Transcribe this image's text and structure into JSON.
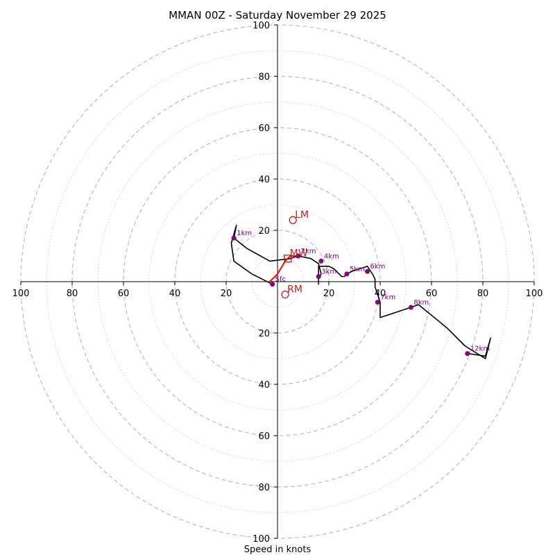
{
  "chart_data": {
    "type": "hodograph",
    "title": "MMAN 00Z - Saturday November 29 2025",
    "xlabel": "Speed in knots",
    "range": [
      -100,
      100
    ],
    "ring_major": [
      20,
      40,
      60,
      80,
      100
    ],
    "ring_minor": [
      10,
      30,
      50,
      70,
      90
    ],
    "x_ticks": [
      {
        "v": -100,
        "label": "100"
      },
      {
        "v": -80,
        "label": "80"
      },
      {
        "v": -60,
        "label": "60"
      },
      {
        "v": -40,
        "label": "40"
      },
      {
        "v": -20,
        "label": "20"
      },
      {
        "v": 20,
        "label": "20"
      },
      {
        "v": 40,
        "label": "40"
      },
      {
        "v": 60,
        "label": "60"
      },
      {
        "v": 80,
        "label": "80"
      },
      {
        "v": 100,
        "label": "100"
      }
    ],
    "y_ticks": [
      {
        "v": 100,
        "label": "100"
      },
      {
        "v": 80,
        "label": "80"
      },
      {
        "v": 60,
        "label": "60"
      },
      {
        "v": 40,
        "label": "40"
      },
      {
        "v": 20,
        "label": "20"
      },
      {
        "v": -20,
        "label": "20"
      },
      {
        "v": -40,
        "label": "40"
      },
      {
        "v": -60,
        "label": "60"
      },
      {
        "v": -80,
        "label": "80"
      },
      {
        "v": -100,
        "label": "100"
      }
    ],
    "trace": [
      [
        -2,
        -1
      ],
      [
        -10,
        3
      ],
      [
        -17,
        8
      ],
      [
        -18,
        15
      ],
      [
        -16,
        22
      ],
      [
        -17,
        17
      ],
      [
        -12,
        13
      ],
      [
        -3,
        8
      ],
      [
        5,
        9
      ],
      [
        8,
        10
      ],
      [
        13,
        9
      ],
      [
        16,
        7
      ],
      [
        17,
        3
      ],
      [
        16,
        1
      ],
      [
        16,
        -1
      ],
      [
        16,
        6
      ],
      [
        20,
        6
      ],
      [
        22,
        5
      ],
      [
        24,
        3
      ],
      [
        25,
        2
      ],
      [
        26,
        2
      ],
      [
        27,
        3
      ],
      [
        29,
        4
      ],
      [
        35,
        6
      ],
      [
        37,
        3
      ],
      [
        38,
        1
      ],
      [
        38,
        -2
      ],
      [
        39,
        -5
      ],
      [
        40,
        -8
      ],
      [
        40,
        -14
      ],
      [
        52,
        -10
      ],
      [
        55,
        -9
      ],
      [
        66,
        -18
      ],
      [
        73,
        -25
      ],
      [
        81,
        -30
      ],
      [
        83,
        -22
      ],
      [
        81,
        -29
      ],
      [
        74,
        -28
      ]
    ],
    "height_points": [
      {
        "x": -2,
        "y": -1,
        "label": "Sfc"
      },
      {
        "x": -17,
        "y": 17,
        "label": "1km"
      },
      {
        "x": 8,
        "y": 10,
        "label": "2km"
      },
      {
        "x": 16,
        "y": 2,
        "label": "3km"
      },
      {
        "x": 17,
        "y": 8,
        "label": "4km"
      },
      {
        "x": 27,
        "y": 3,
        "label": "5km"
      },
      {
        "x": 35,
        "y": 4,
        "label": "6km"
      },
      {
        "x": 39,
        "y": -8,
        "label": "7km"
      },
      {
        "x": 52,
        "y": -10,
        "label": "8km"
      },
      {
        "x": 74,
        "y": -28,
        "label": "12km"
      }
    ],
    "mean_wind_line": [
      [
        -3,
        0
      ],
      [
        0,
        3
      ],
      [
        3,
        8
      ],
      [
        5,
        10
      ],
      [
        8,
        10
      ]
    ],
    "markers": [
      {
        "x": 6,
        "y": 24,
        "label": "LM",
        "shape": "circle"
      },
      {
        "x": 4,
        "y": 9,
        "label": "MW",
        "shape": "square"
      },
      {
        "x": 3,
        "y": -5,
        "label": "RM",
        "shape": "circle"
      }
    ],
    "colors": {
      "trace": "#000000",
      "height_points": "#800080",
      "mean_wind": "#ff0000",
      "markers": "#b22222",
      "grid": "#bbbbbb"
    }
  }
}
